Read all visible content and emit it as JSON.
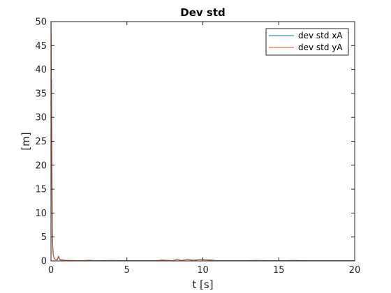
{
  "chart_data": {
    "type": "line",
    "title": "Dev std",
    "xlabel": "t [s]",
    "ylabel": "[m]",
    "xlim": [
      0,
      20
    ],
    "ylim": [
      0,
      50
    ],
    "xticks": [
      0,
      5,
      10,
      15,
      20
    ],
    "yticks": [
      0,
      5,
      10,
      15,
      20,
      25,
      30,
      35,
      40,
      45,
      50
    ],
    "grid": false,
    "legend_position": "top-right",
    "series": [
      {
        "name": "dev std xA",
        "color": "#0072BD",
        "x": [
          0,
          0.02,
          0.04,
          0.06,
          0.08,
          0.1,
          0.12,
          0.15,
          0.2,
          0.3,
          0.4,
          0.5,
          0.6,
          0.8,
          1.0,
          2.0,
          2.5,
          3.0,
          4.0,
          5.0,
          7.0,
          7.3,
          8.0,
          8.3,
          8.6,
          9.0,
          9.4,
          9.8,
          10.5,
          11.0,
          12.5,
          13.5,
          15.0,
          16.0,
          17.0,
          18.0,
          20.0
        ],
        "y": [
          0,
          33,
          38,
          25,
          15,
          8,
          3,
          1.5,
          0.5,
          0.3,
          0.2,
          0.8,
          0.3,
          0.2,
          0.1,
          0.05,
          0.15,
          0.05,
          0.1,
          0.05,
          0.05,
          0.2,
          0.05,
          0.3,
          0.1,
          0.3,
          0.15,
          0.3,
          0.2,
          0.05,
          0.05,
          0.1,
          0.05,
          0.1,
          0.05,
          0.05,
          0.05
        ]
      },
      {
        "name": "dev std yA",
        "color": "#D95319",
        "x": [
          0,
          0.01,
          0.02,
          0.04,
          0.06,
          0.08,
          0.1,
          0.12,
          0.15,
          0.2,
          0.3,
          0.4,
          0.5,
          0.6,
          0.8,
          1.0,
          2.0,
          2.5,
          3.0,
          4.0,
          5.0,
          7.0,
          7.3,
          8.0,
          8.3,
          8.6,
          9.0,
          9.4,
          9.8,
          10.5,
          11.0,
          12.5,
          13.5,
          15.0,
          16.0,
          17.0,
          18.0,
          20.0
        ],
        "y": [
          0,
          50,
          45,
          30,
          17,
          10,
          4,
          2,
          1.2,
          0.6,
          0.3,
          0.3,
          1.0,
          0.2,
          0.15,
          0.1,
          0.05,
          0.1,
          0.05,
          0.05,
          0.05,
          0.05,
          0.15,
          0.05,
          0.25,
          0.1,
          0.25,
          0.1,
          0.25,
          0.15,
          0.05,
          0.05,
          0.05,
          0.05,
          0.05,
          0.05,
          0.05,
          0.05
        ]
      }
    ]
  }
}
